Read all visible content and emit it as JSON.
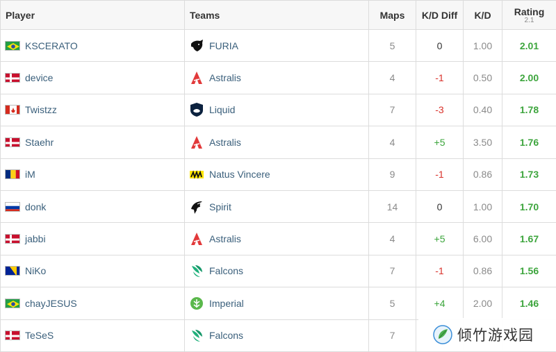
{
  "header": {
    "player": "Player",
    "teams": "Teams",
    "maps": "Maps",
    "kd_diff": "K/D Diff",
    "kd": "K/D",
    "rating": "Rating",
    "rating_version": "2.1"
  },
  "rows": [
    {
      "player": "KSCERATO",
      "flag": "brazil",
      "team": "FURIA",
      "team_logo": "furia",
      "maps": "5",
      "kd_diff": "0",
      "kd": "1.00",
      "rating": "2.01"
    },
    {
      "player": "device",
      "flag": "denmark",
      "team": "Astralis",
      "team_logo": "astralis",
      "maps": "4",
      "kd_diff": "-1",
      "kd": "0.50",
      "rating": "2.00"
    },
    {
      "player": "Twistzz",
      "flag": "canada",
      "team": "Liquid",
      "team_logo": "liquid",
      "maps": "7",
      "kd_diff": "-3",
      "kd": "0.40",
      "rating": "1.78"
    },
    {
      "player": "Staehr",
      "flag": "denmark",
      "team": "Astralis",
      "team_logo": "astralis",
      "maps": "4",
      "kd_diff": "+5",
      "kd": "3.50",
      "rating": "1.76"
    },
    {
      "player": "iM",
      "flag": "romania",
      "team": "Natus Vincere",
      "team_logo": "navi",
      "maps": "9",
      "kd_diff": "-1",
      "kd": "0.86",
      "rating": "1.73"
    },
    {
      "player": "donk",
      "flag": "russia",
      "team": "Spirit",
      "team_logo": "spirit",
      "maps": "14",
      "kd_diff": "0",
      "kd": "1.00",
      "rating": "1.70"
    },
    {
      "player": "jabbi",
      "flag": "denmark",
      "team": "Astralis",
      "team_logo": "astralis",
      "maps": "4",
      "kd_diff": "+5",
      "kd": "6.00",
      "rating": "1.67"
    },
    {
      "player": "NiKo",
      "flag": "bosnia",
      "team": "Falcons",
      "team_logo": "falcons",
      "maps": "7",
      "kd_diff": "-1",
      "kd": "0.86",
      "rating": "1.56"
    },
    {
      "player": "chayJESUS",
      "flag": "brazil",
      "team": "Imperial",
      "team_logo": "imperial",
      "maps": "5",
      "kd_diff": "+4",
      "kd": "2.00",
      "rating": "1.46"
    },
    {
      "player": "TeSeS",
      "flag": "denmark",
      "team": "Falcons",
      "team_logo": "falcons",
      "maps": "7",
      "kd_diff": "",
      "kd": "",
      "rating": ""
    }
  ],
  "colors": {
    "positive": "#3ba53b",
    "negative": "#d9322b",
    "neutral": "#333333",
    "rating": "#3da53d",
    "link": "#3a5f7b"
  },
  "watermark": {
    "text": "倾竹游戏园",
    "icon": "bamboo-leaf-logo"
  }
}
